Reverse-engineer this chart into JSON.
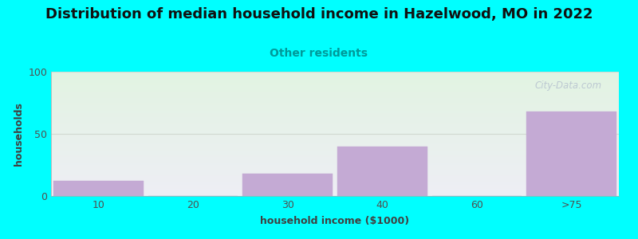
{
  "title": "Distribution of median household income in Hazelwood, MO in 2022",
  "subtitle": "Other residents",
  "xlabel": "household income ($1000)",
  "ylabel": "households",
  "background_color": "#00FFFF",
  "plot_bg_top": "#eeeef5",
  "plot_bg_bottom": "#e2f4e2",
  "bar_color": "#c4aad4",
  "bar_edge_color": "#c4aad4",
  "categories": [
    "10",
    "20",
    "30",
    "40",
    "60",
    ">75"
  ],
  "values": [
    12,
    0,
    18,
    40,
    0,
    68
  ],
  "ylim": [
    0,
    100
  ],
  "yticks": [
    0,
    50,
    100
  ],
  "title_fontsize": 13,
  "subtitle_fontsize": 10,
  "subtitle_color": "#009999",
  "axis_label_fontsize": 9,
  "watermark_text": "City-Data.com",
  "watermark_color": "#b8c4d0",
  "bar_width": 0.95,
  "grid_color": "#d0d8d0",
  "tick_color": "#505050",
  "label_color": "#404040"
}
